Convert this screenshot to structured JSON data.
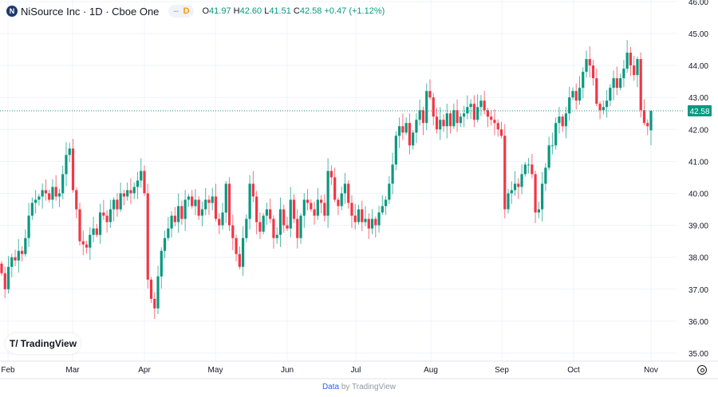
{
  "header": {
    "symbol_title": "NiSource Inc · 1D · Cboe One",
    "logo_letter": "N",
    "interval_badge": "D",
    "open_label": "O",
    "open": "41.97",
    "high_label": "H",
    "high": "42.60",
    "low_label": "L",
    "low": "41.51",
    "close_label": "C",
    "close": "42.58",
    "change": "+0.47 (+1.12%)"
  },
  "watermark": "TradingView",
  "footer": {
    "data_link": "Data",
    "by_text": "by TradingView"
  },
  "colors": {
    "up": "#089981",
    "down": "#f23645",
    "grid": "#f0f3fa",
    "last_price": "#089981"
  },
  "chart_data": {
    "type": "candlestick",
    "title": "NiSource Inc · 1D · Cboe One",
    "ylim": [
      34.8,
      46.0
    ],
    "y_ticks": [
      "35.00",
      "36.00",
      "37.00",
      "38.00",
      "39.00",
      "40.00",
      "41.00",
      "42.00",
      "43.00",
      "44.00",
      "45.00",
      "46.00"
    ],
    "x_ticks": [
      "Feb",
      "Mar",
      "Apr",
      "May",
      "Jun",
      "Jul",
      "Aug",
      "Sep",
      "Oct",
      "Nov"
    ],
    "last_price": 42.58,
    "last_price_label": "42.58",
    "grid": true,
    "closes_by_month": {
      "Jan": [
        37.5,
        37.0,
        37.7
      ],
      "Feb": [
        38.0,
        37.9,
        38.2,
        38.1,
        38.6,
        39.3,
        39.7,
        39.8,
        39.9,
        40.1,
        40.0,
        39.8,
        40.2,
        39.9,
        40.0,
        40.6,
        41.2,
        41.4
      ],
      "Mar": [
        40.1,
        39.5,
        38.5,
        38.4,
        38.3,
        38.7,
        38.9,
        38.7,
        39.4,
        39.3,
        39.1,
        39.5,
        39.8,
        39.5,
        40.0,
        39.9,
        40.1,
        40.0,
        40.2,
        40.4,
        40.7
      ],
      "Apr": [
        40.0,
        37.3,
        36.7,
        36.4,
        37.4,
        38.2,
        38.6,
        38.9,
        39.3,
        39.1,
        39.6,
        39.2,
        39.8,
        39.9,
        39.6,
        39.8,
        39.3,
        39.5,
        39.8,
        39.7,
        39.9
      ],
      "May": [
        39.2,
        39.0,
        39.4,
        40.3,
        39.0,
        38.6,
        38.1,
        37.7,
        38.6,
        39.2,
        40.3,
        39.9,
        39.1,
        38.8,
        39.3,
        39.5,
        39.2,
        38.6,
        38.7,
        39.5,
        39.0
      ],
      "Jun": [
        38.9,
        39.8,
        39.2,
        38.6,
        39.3,
        39.8,
        39.7,
        39.5,
        39.3,
        39.8,
        39.7,
        39.3,
        40.7,
        40.5,
        39.8,
        39.6,
        40.0,
        40.3,
        39.7,
        39.3,
        39.1
      ],
      "Jul": [
        39.5,
        39.1,
        39.2,
        38.9,
        39.2,
        39.0,
        39.4,
        39.6,
        39.8,
        40.3,
        40.9,
        41.8,
        42.1,
        41.9,
        42.2,
        41.5,
        41.9,
        42.3,
        42.6,
        42.2,
        43.2
      ],
      "Aug": [
        43.0,
        42.4,
        42.0,
        42.3,
        42.1,
        42.5,
        42.1,
        42.6,
        42.2,
        42.4,
        42.5,
        42.7,
        42.8,
        42.3,
        42.7,
        42.9,
        42.6,
        42.4,
        42.3,
        42.2,
        42.0
      ],
      "Sep": [
        41.8,
        39.5,
        40.0,
        40.1,
        40.3,
        40.2,
        40.6,
        40.9,
        40.9,
        40.6,
        39.4,
        39.5,
        40.3,
        40.8,
        41.5,
        41.5,
        42.2,
        42.4,
        42.1,
        42.5,
        43.0
      ],
      "Oct": [
        43.2,
        42.9,
        43.3,
        43.8,
        44.2,
        44.0,
        43.6,
        42.8,
        42.6,
        42.7,
        42.9,
        43.3,
        43.6,
        43.3,
        43.6,
        43.9,
        44.4,
        44.0,
        43.7,
        44.2,
        42.6,
        42.2,
        42.1
      ],
      "Nov": [
        42.58
      ]
    }
  }
}
